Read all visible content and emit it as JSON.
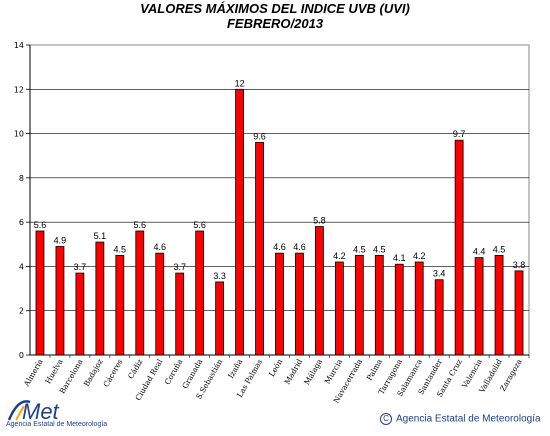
{
  "chart_data": {
    "type": "bar",
    "title": "VALORES MÁXIMOS DEL INDICE UVB (UVI)",
    "subtitle": "FEBRERO/2013",
    "categories": [
      "Almería",
      "Huelva",
      "Barcelona",
      "Badajoz",
      "Cáceres",
      "Cádiz",
      "Ciudad Real",
      "Coruña",
      "Granada",
      "S.Sebastián",
      "Izaña",
      "Las Palmas",
      "León",
      "Madrid",
      "Málaga",
      "Murcia",
      "Navacerrada",
      "Palma",
      "Tarragona",
      "Salamanca",
      "Santander",
      "Santa Cruz",
      "Valencia",
      "Valladolid",
      "Zaragoza"
    ],
    "values": [
      5.6,
      4.9,
      3.7,
      5.1,
      4.5,
      5.6,
      4.6,
      3.7,
      5.6,
      3.3,
      12,
      9.6,
      4.6,
      4.6,
      5.8,
      4.2,
      4.5,
      4.5,
      4.1,
      4.2,
      3.4,
      9.7,
      4.4,
      4.5,
      3.8
    ],
    "value_labels": [
      "5.6",
      "4.9",
      "3.7",
      "5.1",
      "4.5",
      "5.6",
      "4.6",
      "3.7",
      "5.6",
      "3.3",
      "12",
      "9.6",
      "4.6",
      "4.6",
      "5.8",
      "4.2",
      "4.5",
      "4.5",
      "4.1",
      "4.2",
      "3.4",
      "9.7",
      "4.4",
      "4.5",
      "3.8"
    ],
    "ylim": [
      0,
      14
    ],
    "yticks": [
      0,
      2,
      4,
      6,
      8,
      10,
      12,
      14
    ],
    "grid": true,
    "bar_color": "#ff0000",
    "bar_edge_color": "#000000"
  },
  "footer": {
    "logo_text": "AEMet",
    "logo_subtext": "Agencia Estatal de Meteorología",
    "copyright_symbol": "C",
    "copyright_text": "Agencia Estatal de Meteorología"
  },
  "colors": {
    "brand": "#1d3f8f",
    "brand_accent": "#f2a900"
  }
}
